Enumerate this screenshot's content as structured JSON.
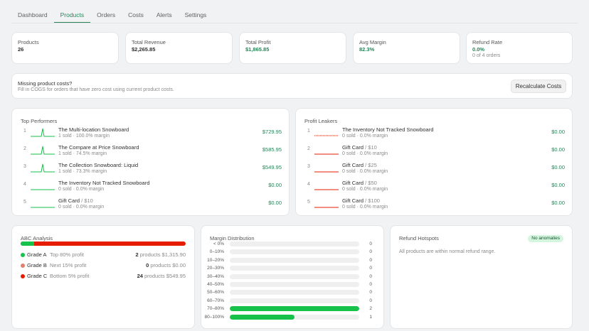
{
  "nav": {
    "tabs": [
      {
        "label": "Dashboard",
        "active": false
      },
      {
        "label": "Products",
        "active": true
      },
      {
        "label": "Orders",
        "active": false
      },
      {
        "label": "Costs",
        "active": false
      },
      {
        "label": "Alerts",
        "active": false
      },
      {
        "label": "Settings",
        "active": false
      }
    ]
  },
  "stats": [
    {
      "label": "Products",
      "value": "26",
      "highlight": false
    },
    {
      "label": "Total Revenue",
      "value": "$2,265.85",
      "highlight": false
    },
    {
      "label": "Total Profit",
      "value": "$1,865.85",
      "highlight": true
    },
    {
      "label": "Avg Margin",
      "value": "82.3%",
      "highlight": true
    },
    {
      "label": "Refund Rate",
      "value": "0.0%",
      "highlight": true,
      "sub": "0 of 4 orders"
    }
  ],
  "banner": {
    "title": "Missing product costs?",
    "text": "Fill in COGS for orders that have zero cost using current product costs.",
    "button_label": "Recalculate Costs"
  },
  "top_performers": {
    "title": "Top Performers",
    "items": [
      {
        "rank": "1",
        "name": "The Multi-location Snowboard",
        "variant": "",
        "meta": "1 sold · 100.0% margin",
        "amount": "$729.95",
        "spark": "peak"
      },
      {
        "rank": "2",
        "name": "The Compare at Price Snowboard",
        "variant": "",
        "meta": "1 sold · 74.5% margin",
        "amount": "$585.95",
        "spark": "peak"
      },
      {
        "rank": "3",
        "name": "The Collection Snowboard: Liquid",
        "variant": "",
        "meta": "1 sold · 73.3% margin",
        "amount": "$549.95",
        "spark": "peak"
      },
      {
        "rank": "4",
        "name": "The Inventory Not Tracked Snowboard",
        "variant": "",
        "meta": "0 sold · 0.0% margin",
        "amount": "$0.00",
        "spark": "flat"
      },
      {
        "rank": "5",
        "name": "Gift Card",
        "variant": "/ $10",
        "meta": "0 sold · 0.0% margin",
        "amount": "$0.00",
        "spark": "flat"
      }
    ]
  },
  "profit_leakers": {
    "title": "Profit Leakers",
    "items": [
      {
        "rank": "1",
        "name": "The Inventory Not Tracked Snowboard",
        "variant": "",
        "meta": "0 sold · 0.0% margin",
        "amount": "$0.00",
        "spark": "dotted"
      },
      {
        "rank": "2",
        "name": "Gift Card",
        "variant": "/ $10",
        "meta": "0 sold · 0.0% margin",
        "amount": "$0.00",
        "spark": "flat-red"
      },
      {
        "rank": "3",
        "name": "Gift Card",
        "variant": "/ $25",
        "meta": "0 sold · 0.0% margin",
        "amount": "$0.00",
        "spark": "flat-red"
      },
      {
        "rank": "4",
        "name": "Gift Card",
        "variant": "/ $50",
        "meta": "0 sold · 0.0% margin",
        "amount": "$0.00",
        "spark": "flat-red"
      },
      {
        "rank": "5",
        "name": "Gift Card",
        "variant": "/ $100",
        "meta": "0 sold · 0.0% margin",
        "amount": "$0.00",
        "spark": "flat-red"
      }
    ]
  },
  "abc": {
    "title": "ABC Analysis",
    "a_share": 0.08,
    "grades": [
      {
        "name": "Grade A",
        "desc": "Top 80% profit",
        "count": "2",
        "unit": "products",
        "amount": "$1,315.90",
        "color": "#16c24a"
      },
      {
        "name": "Grade B",
        "desc": "Next 15% profit",
        "count": "0",
        "unit": "products",
        "amount": "$0.00",
        "color": "#e0806a"
      },
      {
        "name": "Grade C",
        "desc": "Bottom 5% profit",
        "count": "24",
        "unit": "products",
        "amount": "$549.95",
        "color": "#e51c00"
      }
    ]
  },
  "margin_distribution": {
    "title": "Margin Distribution",
    "max": 2,
    "bins": [
      {
        "label": "< 0%",
        "count": 0
      },
      {
        "label": "0–10%",
        "count": 0
      },
      {
        "label": "10–20%",
        "count": 0
      },
      {
        "label": "20–30%",
        "count": 0
      },
      {
        "label": "30–40%",
        "count": 0
      },
      {
        "label": "40–50%",
        "count": 0
      },
      {
        "label": "50–60%",
        "count": 0
      },
      {
        "label": "60–70%",
        "count": 0
      },
      {
        "label": "70–80%",
        "count": 2
      },
      {
        "label": "80–100%",
        "count": 1
      }
    ]
  },
  "refund_hotspots": {
    "title": "Refund Hotspots",
    "badge": "No anomalies",
    "text": "All products are within normal refund range."
  },
  "colors": {
    "accent": "#29845a",
    "positive": "#16c24a",
    "negative": "#e51c00"
  }
}
